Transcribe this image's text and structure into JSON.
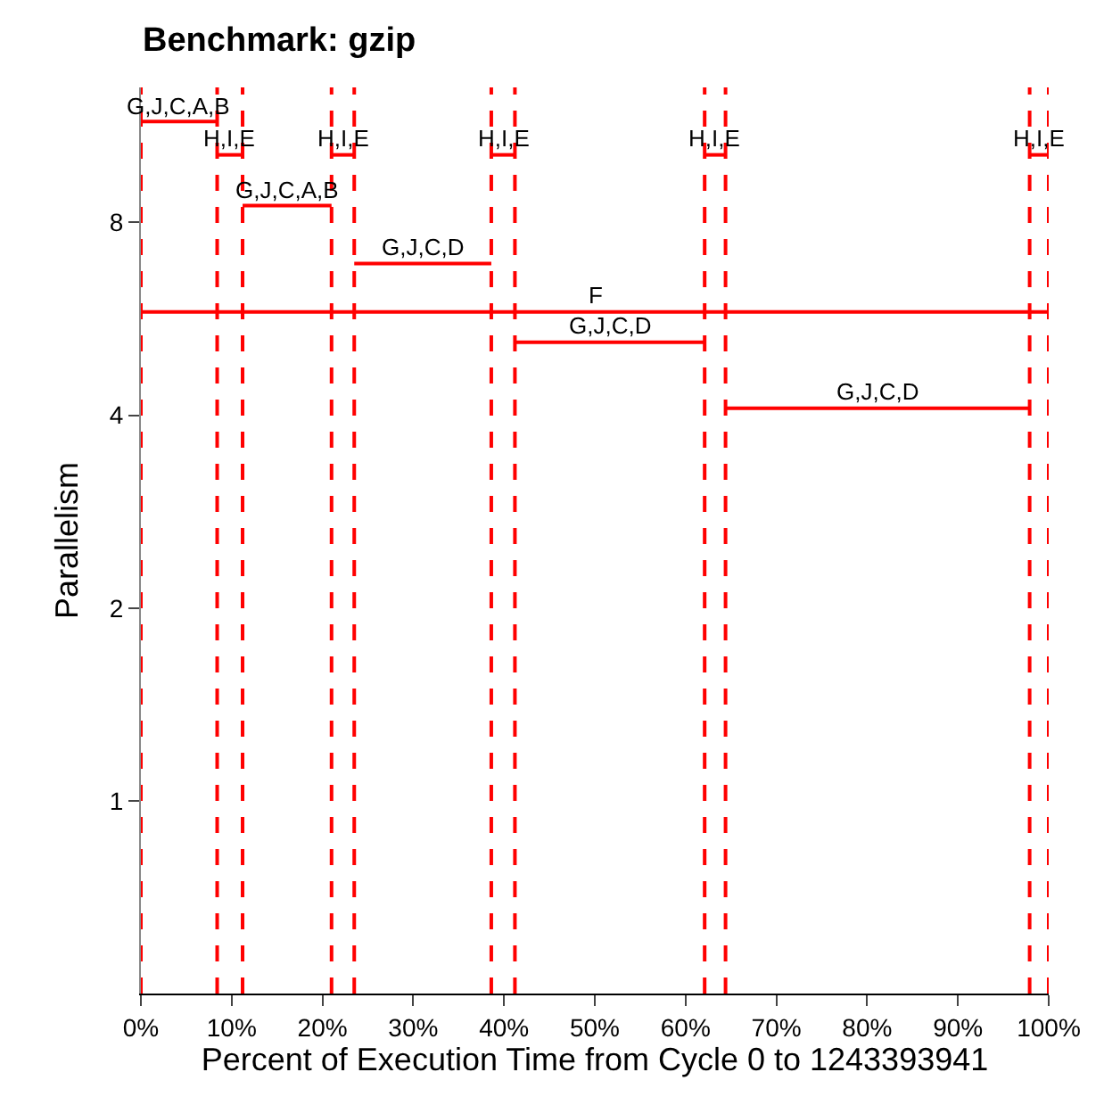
{
  "chart_data": {
    "type": "line",
    "title": "Benchmark: gzip",
    "xlabel": "Percent of Execution Time from Cycle 0 to 1243393941",
    "ylabel": "Parallelism",
    "log": "y",
    "legend": false,
    "grid": false,
    "xlim": [
      0,
      100
    ],
    "ylim": [
      0.5,
      13
    ],
    "xticks": [
      {
        "value": 0,
        "label": "0%"
      },
      {
        "value": 10,
        "label": "10%"
      },
      {
        "value": 20,
        "label": "20%"
      },
      {
        "value": 30,
        "label": "30%"
      },
      {
        "value": 40,
        "label": "40%"
      },
      {
        "value": 50,
        "label": "50%"
      },
      {
        "value": 60,
        "label": "60%"
      },
      {
        "value": 70,
        "label": "70%"
      },
      {
        "value": 80,
        "label": "80%"
      },
      {
        "value": 90,
        "label": "90%"
      },
      {
        "value": 100,
        "label": "100%"
      }
    ],
    "yticks": [
      1,
      2,
      4,
      8
    ],
    "series": [
      {
        "name": "G,J,C,A,B",
        "color": "#ff0000",
        "x": [
          0,
          8.4
        ],
        "values": [
          11.5,
          11.5
        ]
      },
      {
        "name": "H,I,E",
        "color": "#ff0000",
        "x": [
          8.4,
          11.2
        ],
        "values": [
          10.2,
          10.2
        ]
      },
      {
        "name": "G,J,C,A,B",
        "color": "#ff0000",
        "x": [
          11.2,
          21.0
        ],
        "values": [
          8.5,
          8.5
        ]
      },
      {
        "name": "H,I,E",
        "color": "#ff0000",
        "x": [
          21.0,
          23.5
        ],
        "values": [
          10.2,
          10.2
        ]
      },
      {
        "name": "G,J,C,D",
        "color": "#ff0000",
        "x": [
          23.5,
          38.6
        ],
        "values": [
          6.9,
          6.9
        ]
      },
      {
        "name": "H,I,E",
        "color": "#ff0000",
        "x": [
          38.6,
          41.2
        ],
        "values": [
          10.2,
          10.2
        ]
      },
      {
        "name": "G,J,C,D",
        "color": "#ff0000",
        "x": [
          41.2,
          62.1
        ],
        "values": [
          5.2,
          5.2
        ]
      },
      {
        "name": "H,I,E",
        "color": "#ff0000",
        "x": [
          62.1,
          64.4
        ],
        "values": [
          10.2,
          10.2
        ]
      },
      {
        "name": "G,J,C,D",
        "color": "#ff0000",
        "x": [
          64.4,
          97.9
        ],
        "values": [
          4.1,
          4.1
        ]
      },
      {
        "name": "H,I,E",
        "color": "#ff0000",
        "x": [
          97.9,
          100
        ],
        "values": [
          10.2,
          10.2
        ]
      },
      {
        "name": "F",
        "color": "#ff0000",
        "x": [
          0,
          100
        ],
        "values": [
          5.8,
          5.8
        ]
      }
    ],
    "ref_lines": [
      {
        "axis": "x",
        "value": 0,
        "color": "#ff0000",
        "line_style": "dashed"
      },
      {
        "axis": "x",
        "value": 8.4,
        "color": "#ff0000",
        "line_style": "dashed"
      },
      {
        "axis": "x",
        "value": 11.2,
        "color": "#ff0000",
        "line_style": "dashed"
      },
      {
        "axis": "x",
        "value": 21.0,
        "color": "#ff0000",
        "line_style": "dashed"
      },
      {
        "axis": "x",
        "value": 23.5,
        "color": "#ff0000",
        "line_style": "dashed"
      },
      {
        "axis": "x",
        "value": 38.6,
        "color": "#ff0000",
        "line_style": "dashed"
      },
      {
        "axis": "x",
        "value": 41.2,
        "color": "#ff0000",
        "line_style": "dashed"
      },
      {
        "axis": "x",
        "value": 62.1,
        "color": "#ff0000",
        "line_style": "dashed"
      },
      {
        "axis": "x",
        "value": 64.4,
        "color": "#ff0000",
        "line_style": "dashed"
      },
      {
        "axis": "x",
        "value": 97.9,
        "color": "#ff0000",
        "line_style": "dashed"
      },
      {
        "axis": "x",
        "value": 100,
        "color": "#ff0000",
        "line_style": "dashed"
      }
    ]
  }
}
